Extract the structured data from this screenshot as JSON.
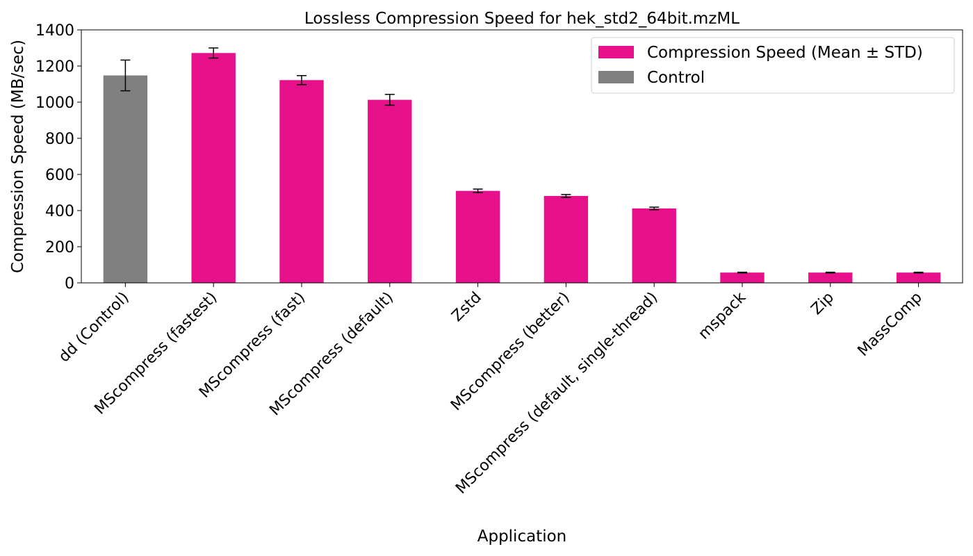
{
  "chart_data": {
    "type": "bar",
    "title": "Lossless Compression Speed for hek_std2_64bit.mzML",
    "xlabel": "Application",
    "ylabel": "Compression Speed (MB/sec)",
    "ylim": [
      0,
      1400
    ],
    "yticks": [
      0,
      200,
      400,
      600,
      800,
      1000,
      1200,
      1400
    ],
    "grid": false,
    "legend_position": "top-right",
    "categories": [
      "dd (Control)",
      "MScompress (fastest)",
      "MScompress (fast)",
      "MScompress (default)",
      "Zstd",
      "MScompress (better)",
      "MScompress (default, single-thread)",
      "mspack",
      "Zip",
      "MassComp"
    ],
    "values": [
      1148,
      1272,
      1122,
      1013,
      509,
      481,
      412,
      57,
      57,
      57
    ],
    "errors": [
      85,
      28,
      25,
      30,
      10,
      8,
      7,
      2,
      2,
      2
    ],
    "groups": [
      "control",
      "compression",
      "compression",
      "compression",
      "compression",
      "compression",
      "compression",
      "compression",
      "compression",
      "compression"
    ],
    "legend": [
      {
        "key": "compression",
        "label": "Compression Speed (Mean ± STD)",
        "color": "#e6118a"
      },
      {
        "key": "control",
        "label": "Control",
        "color": "#808080"
      }
    ]
  }
}
